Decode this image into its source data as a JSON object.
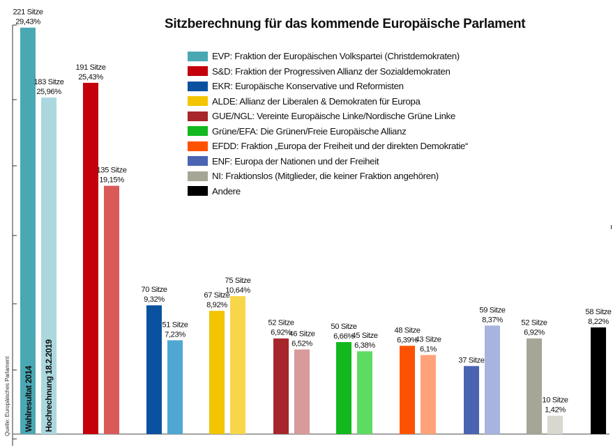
{
  "chart_data": {
    "type": "bar",
    "title": "Sitzberechnung für das kommende Europäische Parlament",
    "source": "Quelle: Europäisches Parlament",
    "bar_text": {
      "actual": "Wahlresultat 2014",
      "projection": "Hochrechnung 18.2.2019"
    },
    "ylim": [
      0,
      233
    ],
    "groups": [
      {
        "party": "EVP",
        "legend": "EVP: Fraktion der Europäischen Volkspartei (Christdemokraten)",
        "colors": {
          "legend": "#4AA8B4",
          "actual": "#4AA8B4",
          "projection": "#ABD8DF"
        },
        "actual": {
          "seats": 221,
          "seats_label": "221 Sitze",
          "pct_label": "29,43%"
        },
        "projection": {
          "seats": 183,
          "seats_label": "183 Sitze",
          "pct_label": "25,96%"
        }
      },
      {
        "party": "S&D",
        "legend": "S&D: Fraktion der Progressiven Allianz der Sozialdemokraten",
        "colors": {
          "legend": "#C4000B",
          "actual": "#C4000B",
          "projection": "#DA5A5A"
        },
        "actual": {
          "seats": 191,
          "seats_label": "191 Sitze",
          "pct_label": "25,43%"
        },
        "projection": {
          "seats": 135,
          "seats_label": "135 Sitze",
          "pct_label": "19,15%"
        }
      },
      {
        "party": "EKR",
        "legend": "EKR: Europäische Konservative und Reformisten",
        "colors": {
          "legend": "#0A52A0",
          "actual": "#0A52A0",
          "projection": "#4FA7D2"
        },
        "actual": {
          "seats": 70,
          "seats_label": "70 Sitze",
          "pct_label": "9,32%"
        },
        "projection": {
          "seats": 51,
          "seats_label": "51 Sitze",
          "pct_label": "7,23%"
        }
      },
      {
        "party": "ALDE",
        "legend": "ALDE: Allianz der Liberalen & Demokraten für Europa",
        "colors": {
          "legend": "#F2C500",
          "actual": "#F2C500",
          "projection": "#F7D64A"
        },
        "actual": {
          "seats": 67,
          "seats_label": "67 Sitze",
          "pct_label": "8,92%"
        },
        "projection": {
          "seats": 75,
          "seats_label": "75 Sitze",
          "pct_label": "10,64%"
        }
      },
      {
        "party": "GUE/NGL",
        "legend": "GUE/NGL: Vereinte Europäische Linke/Nordische Grüne Linke",
        "colors": {
          "legend": "#A6262C",
          "actual": "#A6262C",
          "projection": "#D89A9A"
        },
        "actual": {
          "seats": 52,
          "seats_label": "52 Sitze",
          "pct_label": "6,92%"
        },
        "projection": {
          "seats": 46,
          "seats_label": "46 Sitze",
          "pct_label": "6,52%"
        }
      },
      {
        "party": "Grüne/EFA",
        "legend": "Grüne/EFA: Die Grünen/Freie Europäische Allianz",
        "colors": {
          "legend": "#12B81E",
          "actual": "#12B81E",
          "projection": "#5EDB62"
        },
        "actual": {
          "seats": 50,
          "seats_label": "50 Sitze",
          "pct_label": "6,66%"
        },
        "projection": {
          "seats": 45,
          "seats_label": "45 Sitze",
          "pct_label": "6,38%"
        }
      },
      {
        "party": "EFDD",
        "legend": "EFDD: Fraktion „Europa der Freiheit und der direkten Demokratie“",
        "colors": {
          "legend": "#FF5200",
          "actual": "#FF5200",
          "projection": "#FFA27A"
        },
        "actual": {
          "seats": 48,
          "seats_label": "48 Sitze",
          "pct_label": "6,39%"
        },
        "projection": {
          "seats": 43,
          "seats_label": "43 Sitze",
          "pct_label": "6,1%"
        }
      },
      {
        "party": "ENF",
        "legend": "ENF: Europa der Nationen und der Freiheit",
        "colors": {
          "legend": "#4B64B2",
          "actual": "#4B64B2",
          "projection": "#A6B4DE"
        },
        "actual": {
          "seats": 37,
          "seats_label": "37 Sitze",
          "pct_label": ""
        },
        "projection": {
          "seats": 59,
          "seats_label": "59 Sitze",
          "pct_label": "8,37%"
        }
      },
      {
        "party": "NI",
        "legend": "NI: Fraktionslos (Mitglieder, die keiner Fraktion angehören)",
        "colors": {
          "legend": "#A6A696",
          "actual": "#A6A696",
          "projection": "#D8D8CE"
        },
        "actual": {
          "seats": 52,
          "seats_label": "52 Sitze",
          "pct_label": "6,92%"
        },
        "projection": {
          "seats": 10,
          "seats_label": "10 Sitze",
          "pct_label": "1,42%"
        }
      },
      {
        "party": "Andere",
        "legend": "Andere",
        "colors": {
          "legend": "#000000",
          "actual": null,
          "projection": "#000000"
        },
        "actual": null,
        "projection": {
          "seats": 58,
          "seats_label": "58 Sitze",
          "pct_label": "8,22%"
        }
      }
    ]
  }
}
